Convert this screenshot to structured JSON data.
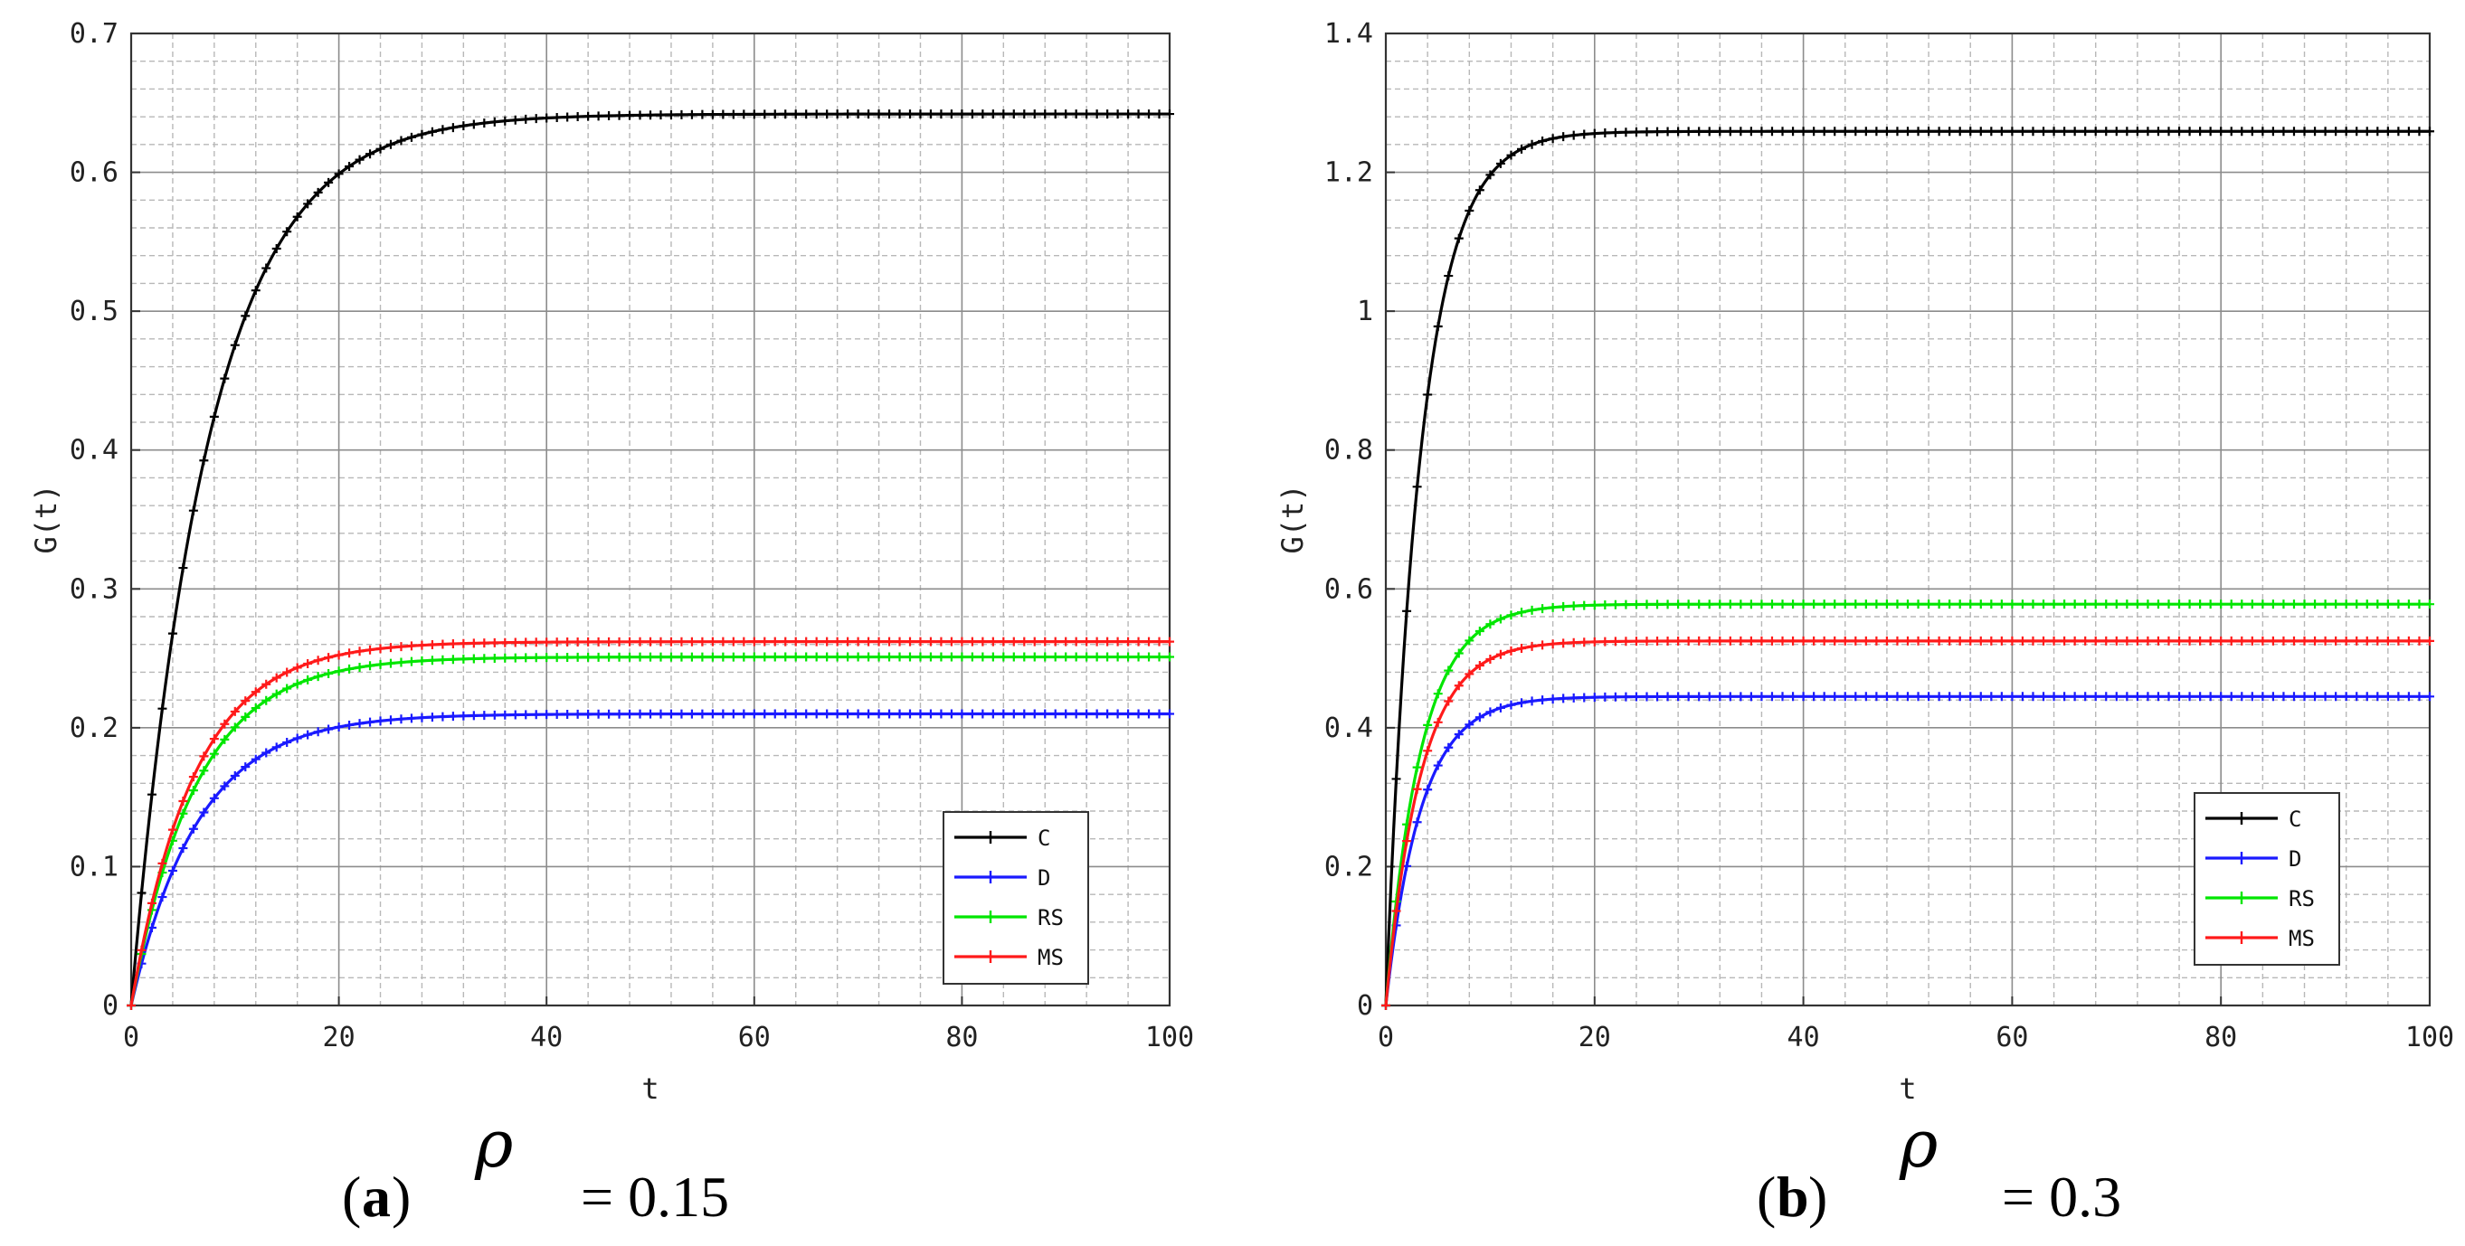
{
  "chart_data": [
    {
      "type": "line",
      "panel": "a",
      "xlabel": "t",
      "ylabel": "G(t)",
      "xlim": [
        0,
        100
      ],
      "ylim": [
        0,
        0.7
      ],
      "xticks": [
        "0",
        "20",
        "40",
        "60",
        "80",
        "100"
      ],
      "yticks": [
        "0",
        "0.1",
        "0.2",
        "0.3",
        "0.4",
        "0.5",
        "0.6",
        "0.7"
      ],
      "grid": "on",
      "legend_position": "bottom-right",
      "caption": {
        "letter": "(a)",
        "symbol": "ρ",
        "value": "= 0.15"
      },
      "series": [
        {
          "name": "C",
          "color": "#000000",
          "plateau": 0.642,
          "rate": 0.135
        },
        {
          "name": "D",
          "color": "#1a1aff",
          "plateau": 0.21,
          "rate": 0.155
        },
        {
          "name": "RS",
          "color": "#00e600",
          "plateau": 0.251,
          "rate": 0.16
        },
        {
          "name": "MS",
          "color": "#ff1a1a",
          "plateau": 0.262,
          "rate": 0.165
        }
      ]
    },
    {
      "type": "line",
      "panel": "b",
      "xlabel": "t",
      "ylabel": "G(t)",
      "xlim": [
        0,
        100
      ],
      "ylim": [
        0,
        1.4
      ],
      "xticks": [
        "0",
        "20",
        "40",
        "60",
        "80",
        "100"
      ],
      "yticks": [
        "0",
        "0.2",
        "0.4",
        "0.6",
        "0.8",
        "1",
        "1.2",
        "1.4"
      ],
      "grid": "on",
      "legend_position": "bottom-right",
      "caption": {
        "letter": "(b)",
        "symbol": "ρ",
        "value": "= 0.3"
      },
      "series": [
        {
          "name": "C",
          "color": "#000000",
          "plateau": 1.259,
          "rate": 0.3
        },
        {
          "name": "D",
          "color": "#1a1aff",
          "plateau": 0.445,
          "rate": 0.3
        },
        {
          "name": "RS",
          "color": "#00e600",
          "plateau": 0.578,
          "rate": 0.3
        },
        {
          "name": "MS",
          "color": "#ff1a1a",
          "plateau": 0.525,
          "rate": 0.3
        }
      ]
    }
  ]
}
